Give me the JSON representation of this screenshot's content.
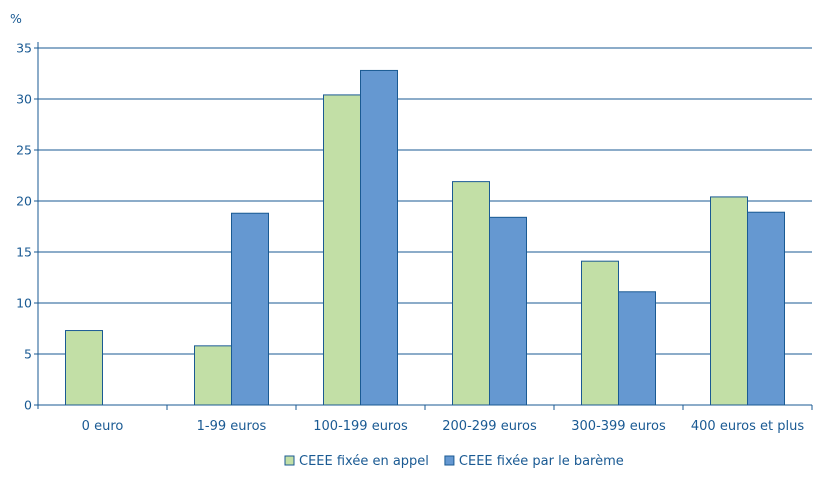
{
  "chart_data": {
    "type": "bar",
    "ylabel": "%",
    "ylim": [
      0,
      35
    ],
    "yticks": [
      0,
      5,
      10,
      15,
      20,
      25,
      30,
      35
    ],
    "grid": true,
    "legend_position": "bottom",
    "categories": [
      "0 euro",
      "1-99 euros",
      "100-199 euros",
      "200-299 euros",
      "300-399 euros",
      "400 euros et plus"
    ],
    "series": [
      {
        "name": "CEEE fixée en appel",
        "color": "#c2dfa6",
        "values": [
          7.3,
          5.8,
          30.4,
          21.9,
          14.1,
          20.4
        ]
      },
      {
        "name": "CEEE fixée par le barème",
        "color": "#6598d1",
        "values": [
          0,
          18.8,
          32.8,
          18.4,
          11.1,
          18.9
        ]
      }
    ],
    "colors": {
      "axis": "#1a5a93",
      "grid": "#1a5a93",
      "text": "#1a5a93",
      "bar_border": "#1a5a93"
    }
  }
}
